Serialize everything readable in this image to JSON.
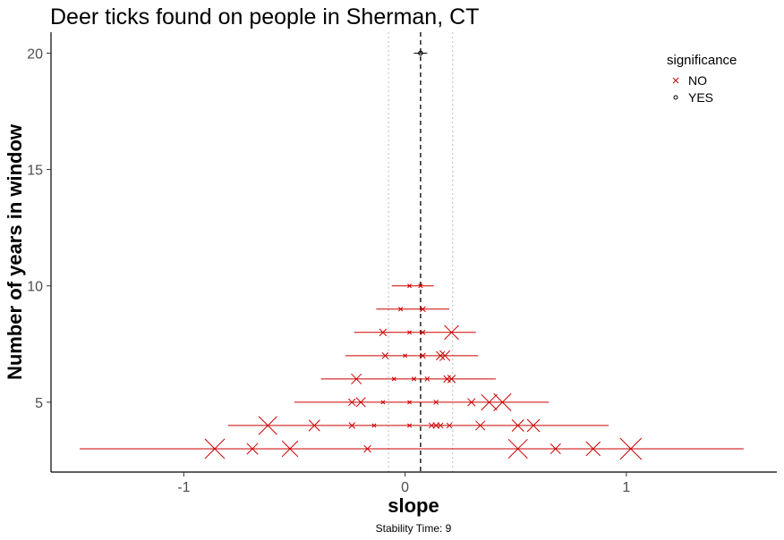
{
  "chart_data": {
    "type": "scatter",
    "title": "Deer ticks found on people in Sherman, CT",
    "xlabel": "slope",
    "ylabel": "Number of years in window",
    "caption": "Stability Time: 9",
    "xlim": [
      -1.6,
      1.68
    ],
    "ylim": [
      2.0,
      20.9
    ],
    "x_ticks": [
      -1,
      0,
      1
    ],
    "x_tick_labels": [
      "-1",
      "0",
      "1"
    ],
    "y_ticks": [
      5,
      10,
      15,
      20
    ],
    "y_tick_labels": [
      "5",
      "10",
      "15",
      "20"
    ],
    "grid": false,
    "reference_lines": {
      "mean_slope": 0.07,
      "dotted": [
        -0.075,
        0.215
      ]
    },
    "legend": {
      "title": "significance",
      "position": "top-right",
      "entries": [
        {
          "label": "NO",
          "shape": "cross",
          "color": "#cc0000"
        },
        {
          "label": "YES",
          "shape": "circle",
          "color": "#000000"
        }
      ]
    },
    "ranges": [
      {
        "y": 20,
        "min": 0.04,
        "max": 0.1,
        "color": "#000000"
      },
      {
        "y": 10,
        "min": -0.06,
        "max": 0.13,
        "color": "#cc0000"
      },
      {
        "y": 9,
        "min": -0.13,
        "max": 0.2,
        "color": "#cc0000"
      },
      {
        "y": 8,
        "min": -0.23,
        "max": 0.32,
        "color": "#cc0000"
      },
      {
        "y": 7,
        "min": -0.27,
        "max": 0.33,
        "color": "#cc0000"
      },
      {
        "y": 6,
        "min": -0.38,
        "max": 0.41,
        "color": "#cc0000"
      },
      {
        "y": 5,
        "min": -0.5,
        "max": 0.65,
        "color": "#cc0000"
      },
      {
        "y": 4,
        "min": -0.8,
        "max": 0.92,
        "color": "#cc0000"
      },
      {
        "y": 3,
        "min": -1.47,
        "max": 1.53,
        "color": "#cc0000"
      }
    ],
    "points": [
      {
        "x": 0.07,
        "y": 20,
        "size": 0.4,
        "sig": "YES"
      },
      {
        "x": 0.02,
        "y": 10,
        "size": 0.1,
        "sig": "NO"
      },
      {
        "x": 0.07,
        "y": 10,
        "size": 0.12,
        "sig": "NO"
      },
      {
        "x": -0.02,
        "y": 9,
        "size": 0.12,
        "sig": "NO"
      },
      {
        "x": 0.08,
        "y": 9,
        "size": 0.2,
        "sig": "NO"
      },
      {
        "x": -0.1,
        "y": 8,
        "size": 0.3,
        "sig": "NO"
      },
      {
        "x": 0.02,
        "y": 8,
        "size": 0.1,
        "sig": "NO"
      },
      {
        "x": 0.08,
        "y": 8,
        "size": 0.15,
        "sig": "NO"
      },
      {
        "x": 0.21,
        "y": 8,
        "size": 0.75,
        "sig": "NO"
      },
      {
        "x": -0.09,
        "y": 7,
        "size": 0.25,
        "sig": "NO"
      },
      {
        "x": 0.0,
        "y": 7,
        "size": 0.1,
        "sig": "NO"
      },
      {
        "x": 0.08,
        "y": 7,
        "size": 0.2,
        "sig": "NO"
      },
      {
        "x": 0.16,
        "y": 7,
        "size": 0.4,
        "sig": "NO"
      },
      {
        "x": 0.18,
        "y": 7,
        "size": 0.5,
        "sig": "NO"
      },
      {
        "x": -0.22,
        "y": 6,
        "size": 0.5,
        "sig": "NO"
      },
      {
        "x": -0.05,
        "y": 6,
        "size": 0.1,
        "sig": "NO"
      },
      {
        "x": 0.04,
        "y": 6,
        "size": 0.12,
        "sig": "NO"
      },
      {
        "x": 0.1,
        "y": 6,
        "size": 0.15,
        "sig": "NO"
      },
      {
        "x": 0.19,
        "y": 6,
        "size": 0.3,
        "sig": "NO"
      },
      {
        "x": 0.21,
        "y": 6,
        "size": 0.35,
        "sig": "NO"
      },
      {
        "x": -0.24,
        "y": 5,
        "size": 0.3,
        "sig": "NO"
      },
      {
        "x": -0.2,
        "y": 5,
        "size": 0.45,
        "sig": "NO"
      },
      {
        "x": -0.1,
        "y": 5,
        "size": 0.1,
        "sig": "NO"
      },
      {
        "x": 0.02,
        "y": 5,
        "size": 0.1,
        "sig": "NO"
      },
      {
        "x": 0.14,
        "y": 5,
        "size": 0.15,
        "sig": "NO"
      },
      {
        "x": 0.3,
        "y": 5,
        "size": 0.35,
        "sig": "NO"
      },
      {
        "x": 0.38,
        "y": 5,
        "size": 0.85,
        "sig": "NO"
      },
      {
        "x": 0.44,
        "y": 5,
        "size": 0.95,
        "sig": "NO"
      },
      {
        "x": -0.62,
        "y": 4,
        "size": 1.0,
        "sig": "NO"
      },
      {
        "x": -0.41,
        "y": 4,
        "size": 0.55,
        "sig": "NO"
      },
      {
        "x": -0.24,
        "y": 4,
        "size": 0.25,
        "sig": "NO"
      },
      {
        "x": -0.14,
        "y": 4,
        "size": 0.1,
        "sig": "NO"
      },
      {
        "x": 0.02,
        "y": 4,
        "size": 0.1,
        "sig": "NO"
      },
      {
        "x": 0.12,
        "y": 4,
        "size": 0.2,
        "sig": "NO"
      },
      {
        "x": 0.14,
        "y": 4,
        "size": 0.25,
        "sig": "NO"
      },
      {
        "x": 0.16,
        "y": 4,
        "size": 0.2,
        "sig": "NO"
      },
      {
        "x": 0.2,
        "y": 4,
        "size": 0.2,
        "sig": "NO"
      },
      {
        "x": 0.34,
        "y": 4,
        "size": 0.45,
        "sig": "NO"
      },
      {
        "x": 0.51,
        "y": 4,
        "size": 0.6,
        "sig": "NO"
      },
      {
        "x": 0.58,
        "y": 4,
        "size": 0.65,
        "sig": "NO"
      },
      {
        "x": -0.86,
        "y": 3,
        "size": 1.1,
        "sig": "NO"
      },
      {
        "x": -0.69,
        "y": 3,
        "size": 0.55,
        "sig": "NO"
      },
      {
        "x": -0.52,
        "y": 3,
        "size": 0.85,
        "sig": "NO"
      },
      {
        "x": -0.17,
        "y": 3,
        "size": 0.3,
        "sig": "NO"
      },
      {
        "x": 0.51,
        "y": 3,
        "size": 1.05,
        "sig": "NO"
      },
      {
        "x": 0.68,
        "y": 3,
        "size": 0.5,
        "sig": "NO"
      },
      {
        "x": 0.85,
        "y": 3,
        "size": 0.75,
        "sig": "NO"
      },
      {
        "x": 1.02,
        "y": 3,
        "size": 1.2,
        "sig": "NO"
      }
    ]
  }
}
